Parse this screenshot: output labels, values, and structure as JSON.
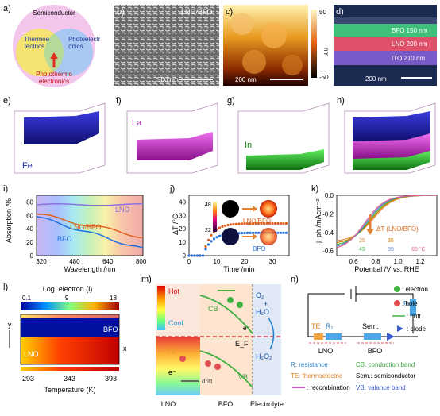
{
  "panels": {
    "a": {
      "letter": "a)",
      "semiconductor": "Semiconductor",
      "thermo": [
        "Thermoe",
        "lectrics"
      ],
      "photo": [
        "Photoelectr",
        "onics"
      ],
      "photothermo": [
        "Photothermo",
        "electronics"
      ]
    },
    "b": {
      "letter": "b)",
      "label": "LNO/BFO",
      "scale": "500 nm"
    },
    "c": {
      "letter": "c)",
      "scale": "200 nm",
      "cb_max": "50",
      "cb_min": "-50",
      "cb_unit": "nm"
    },
    "d": {
      "letter": "d)",
      "layers": [
        "BFO 150 nm",
        "LNO 200 nm",
        "ITO 210 nm"
      ],
      "scale": "200 nm"
    },
    "e": {
      "letter": "e)",
      "element": "Fe"
    },
    "f": {
      "letter": "f)",
      "element": "La"
    },
    "g": {
      "letter": "g)",
      "element": "In"
    },
    "h": {
      "letter": "h)"
    },
    "i": {
      "letter": "i)",
      "ylabel": "Absorption /%",
      "xlabel": "Wavelength /nm",
      "xticks": [
        "320",
        "480",
        "640",
        "800"
      ],
      "yticks": [
        "0",
        "20",
        "40",
        "60",
        "80"
      ],
      "series": [
        "LNO",
        "LNO/BFO",
        "BFO"
      ]
    },
    "j": {
      "letter": "j)",
      "ylabel": "ΔT /°C",
      "xlabel": "Time /min",
      "xticks": [
        "0",
        "10",
        "20",
        "30"
      ],
      "yticks": [
        "0",
        "10",
        "20",
        "30",
        "40"
      ],
      "cb_max": "48",
      "cb_min": "22",
      "series": [
        "LNO/BFO",
        "BFO"
      ]
    },
    "k": {
      "letter": "k)",
      "ylabel": "j_ph /mAcm⁻²",
      "xlabel": "Potential /V vs. RHE",
      "xticks": [
        "0.6",
        "0.8",
        "1.0",
        "1.2"
      ],
      "yticks": [
        "0.0",
        "-0.2",
        "-0.4",
        "-0.6"
      ],
      "annot": "ΔT (LNO/BFO)",
      "temps": [
        "25",
        "35",
        "45",
        "55",
        "65 °C"
      ]
    },
    "l": {
      "letter": "l)",
      "title": "Log. electron (l)",
      "cb_ticks": [
        "0.1",
        "9",
        "18"
      ],
      "xlabel": "Temperature (K)",
      "xticks": [
        "293",
        "343",
        "393"
      ],
      "bfo": "BFO",
      "lno": "LNO",
      "y": "y",
      "x": "x"
    },
    "m": {
      "letter": "m)",
      "hot": "Hot",
      "cool": "Cool",
      "cb": "CB",
      "vb": "VB",
      "ef": "E_F",
      "te": "TE",
      "drift": "drift",
      "o2": "O₂",
      "h2o_1": "+",
      "h2o": "H₂O",
      "h2o2": "H₂O₂",
      "e": "e⁻",
      "lno": "LNO",
      "bfo": "BFO",
      "electrolyte": "Electrolyte"
    },
    "n": {
      "letter": "n)",
      "te": "TE",
      "r1": "R₁",
      "sem": "Sem.",
      "r2": "R₂",
      "lno": "LNO",
      "bfo": "BFO",
      "legend": [
        "R: resistance",
        "CB: conduction band",
        "TE: thermoelectric",
        "Sem.: semiconductor",
        "VB: valance band"
      ],
      "electron": ": electron",
      "hole": ": hole",
      "drift": ": drift",
      "diode": ": diode",
      "recomb": ": recombination"
    }
  }
}
